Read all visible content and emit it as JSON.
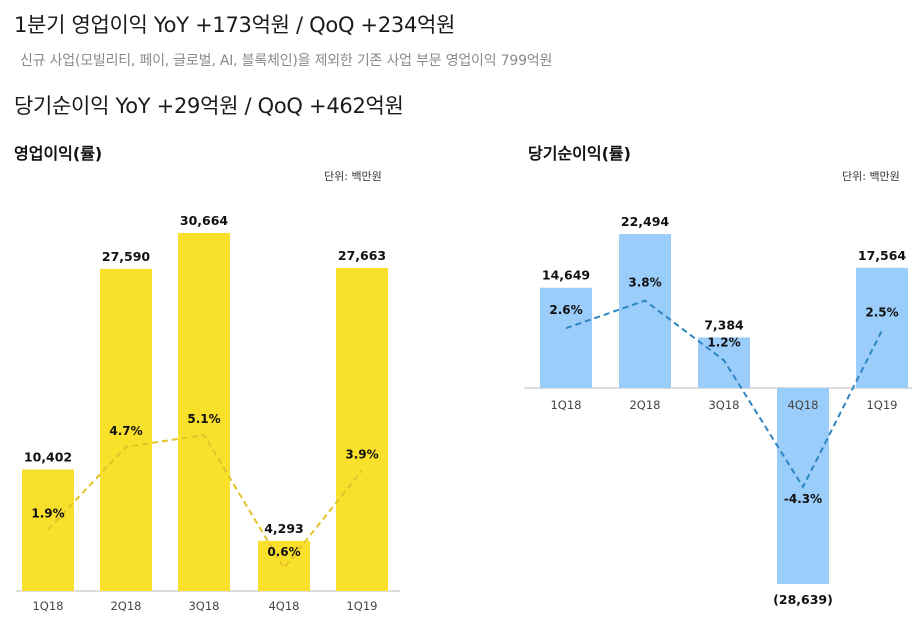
{
  "headlines": {
    "line1": "1분기 영업이익 YoY +173억원 / QoQ +234억원",
    "line2": "신규 사업(모빌리티, 페이, 글로벌, AI, 블록체인)을 제외한 기존 사업 부문 영업이익 799억원",
    "line3": "당기순이익 YoY +29억원 / QoQ +462억원"
  },
  "colors": {
    "op_bar": "#F9E02A",
    "op_line": "#E3C229",
    "ni_bar": "#9ACDFA",
    "ni_line": "#2E86C1"
  },
  "chart_data": [
    {
      "type": "bar",
      "title": "영업이익(률)",
      "unit_label": "단위: 백만원",
      "categories": [
        "1Q18",
        "2Q18",
        "3Q18",
        "4Q18",
        "1Q19"
      ],
      "values": [
        10402,
        27590,
        30664,
        4293,
        27663
      ],
      "value_labels": [
        "10,402",
        "27,590",
        "30,664",
        "4,293",
        "27,663"
      ],
      "margin_series": {
        "values": [
          1.9,
          4.7,
          5.1,
          0.6,
          3.9
        ],
        "labels": [
          "1.9%",
          "4.7%",
          "5.1%",
          "0.6%",
          "3.9%"
        ],
        "style": "dashed-line"
      }
    },
    {
      "type": "bar",
      "title": "당기순이익(률)",
      "unit_label": "단위: 백만원",
      "categories": [
        "1Q18",
        "2Q18",
        "3Q18",
        "4Q18",
        "1Q19"
      ],
      "values": [
        14649,
        22494,
        7384,
        -28639,
        17564
      ],
      "value_labels": [
        "14,649",
        "22,494",
        "7,384",
        "(28,639)",
        "17,564"
      ],
      "margin_series": {
        "values": [
          2.6,
          3.8,
          1.2,
          -4.3,
          2.5
        ],
        "labels": [
          "2.6%",
          "3.8%",
          "1.2%",
          "-4.3%",
          "2.5%"
        ],
        "style": "dashed-line"
      }
    }
  ]
}
